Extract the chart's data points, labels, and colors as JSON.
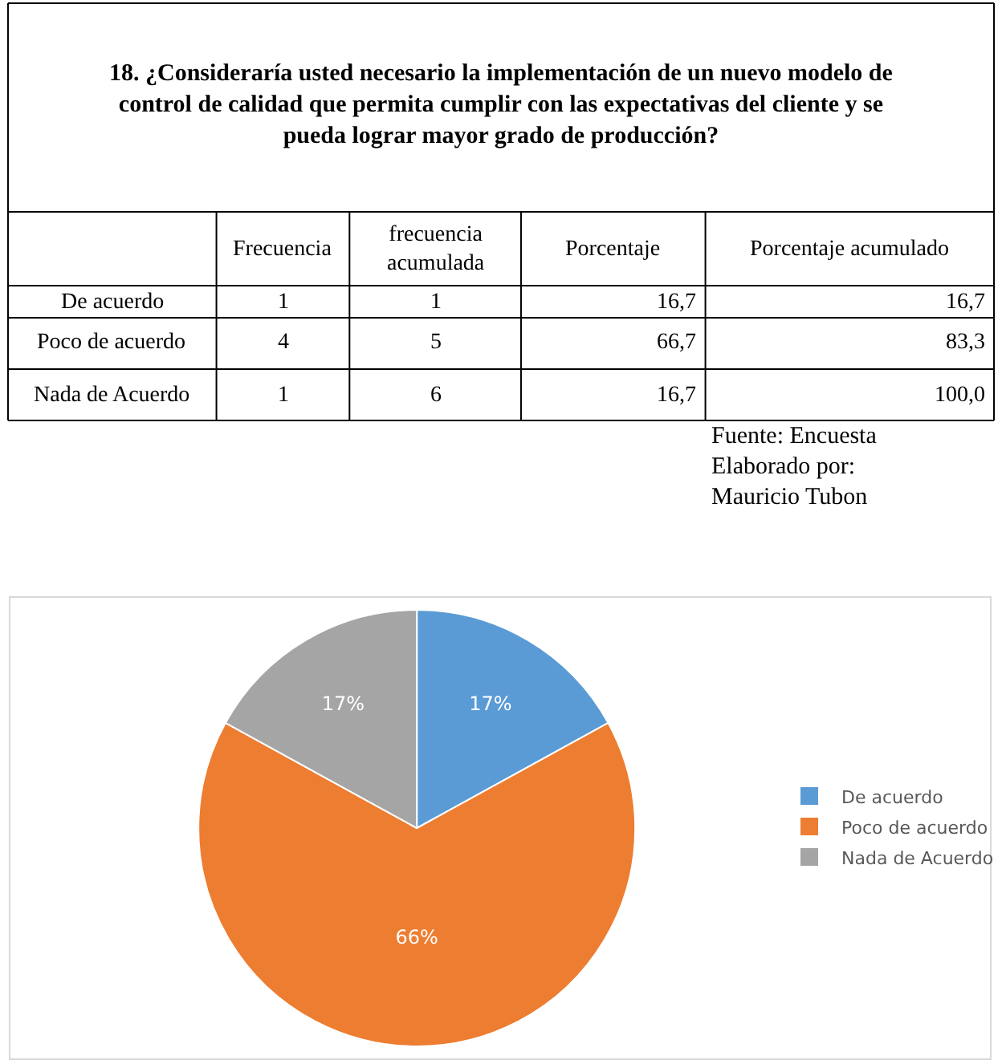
{
  "chart_data": [
    {
      "type": "other",
      "title": "18. ¿Consideraría usted necesario la implementación de un nuevo modelo de control de calidad que permita cumplir con las expectativas del cliente y se pueda lograr mayor grado de producción?",
      "annotations": [
        "Frecuencia",
        "frecuencia acumulada",
        "Porcentaje",
        "Porcentaje acumulado",
        "De acuerdo",
        "1",
        "1",
        "16,7",
        "16,7",
        "Poco de acuerdo",
        "4",
        "5",
        "66,7",
        "83,3",
        "Nada de Acuerdo",
        "1",
        "6",
        "16,7",
        "100,0",
        "Fuente: Encuesta",
        "Elaborado por:",
        "Mauricio Tubon"
      ]
    },
    {
      "type": "pie",
      "categories": [
        "De acuerdo",
        "Poco de acuerdo",
        "Nada de Acuerdo"
      ],
      "values": [
        17,
        66,
        17
      ],
      "colors": [
        "#5b9bd5",
        "#ed7d31",
        "#a5a5a5"
      ],
      "value_labels": [
        "17%",
        "66%",
        "17%"
      ],
      "legend": "right"
    }
  ]
}
